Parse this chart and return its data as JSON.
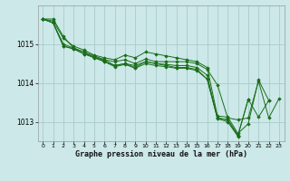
{
  "background_color": "#cce8e8",
  "plot_bg_color": "#cce8e8",
  "grid_color": "#aacccc",
  "line_color": "#1a6e1a",
  "marker_color": "#1a6e1a",
  "xlabel": "Graphe pression niveau de la mer (hPa)",
  "xlim": [
    -0.5,
    23.5
  ],
  "ylim": [
    1012.5,
    1016.0
  ],
  "yticks": [
    1013,
    1014,
    1015
  ],
  "xticks": [
    0,
    1,
    2,
    3,
    4,
    5,
    6,
    7,
    8,
    9,
    10,
    11,
    12,
    13,
    14,
    15,
    16,
    17,
    18,
    19,
    20,
    21,
    22,
    23
  ],
  "series": [
    {
      "x": [
        0,
        1,
        2,
        3,
        4,
        5,
        6,
        7,
        8,
        9,
        10,
        11,
        12,
        13,
        14,
        15,
        16,
        17,
        18,
        19,
        20,
        21,
        22,
        23
      ],
      "y": [
        1015.65,
        1015.65,
        1015.2,
        1014.9,
        1014.8,
        1014.65,
        1014.6,
        1014.55,
        1014.6,
        1014.5,
        1014.62,
        1014.55,
        1014.55,
        1014.55,
        1014.55,
        1014.5,
        1014.35,
        1013.95,
        1013.1,
        1013.05,
        1013.1,
        1014.05,
        1013.1,
        1013.6
      ]
    },
    {
      "x": [
        0,
        1,
        2,
        3,
        4,
        5,
        6,
        7,
        8,
        9,
        10,
        11,
        12,
        13,
        14,
        15,
        16,
        17,
        18,
        19,
        20,
        21,
        22
      ],
      "y": [
        1015.65,
        1015.6,
        1015.15,
        1014.95,
        1014.85,
        1014.72,
        1014.65,
        1014.6,
        1014.72,
        1014.65,
        1014.8,
        1014.75,
        1014.7,
        1014.65,
        1014.6,
        1014.55,
        1014.4,
        1013.15,
        1013.12,
        1012.7,
        1012.95,
        1014.08,
        1013.55
      ]
    },
    {
      "x": [
        0,
        1,
        2,
        3,
        4,
        5,
        6,
        7,
        8,
        9,
        10,
        11,
        12,
        13,
        14,
        15,
        16,
        17,
        18,
        19,
        20,
        21,
        22
      ],
      "y": [
        1015.65,
        1015.55,
        1014.95,
        1014.88,
        1014.75,
        1014.68,
        1014.55,
        1014.45,
        1014.5,
        1014.45,
        1014.55,
        1014.5,
        1014.45,
        1014.4,
        1014.4,
        1014.35,
        1014.1,
        1013.1,
        1013.05,
        1012.65,
        1013.58,
        1013.12,
        1013.55
      ]
    },
    {
      "x": [
        0,
        1,
        2,
        3,
        4,
        5,
        6,
        7,
        8,
        9,
        10,
        11,
        12,
        13,
        14,
        15,
        16,
        17,
        18,
        19,
        20
      ],
      "y": [
        1015.65,
        1015.55,
        1015.0,
        1014.9,
        1014.8,
        1014.7,
        1014.6,
        1014.45,
        1014.5,
        1014.4,
        1014.55,
        1014.5,
        1014.48,
        1014.45,
        1014.45,
        1014.4,
        1014.2,
        1013.1,
        1013.05,
        1012.65,
        1013.58
      ]
    },
    {
      "x": [
        0,
        1,
        2,
        3,
        4,
        5,
        6,
        7,
        8,
        9,
        10,
        11,
        12,
        13,
        14,
        15,
        16,
        17,
        18,
        19
      ],
      "y": [
        1015.65,
        1015.55,
        1014.95,
        1014.88,
        1014.75,
        1014.65,
        1014.55,
        1014.42,
        1014.48,
        1014.38,
        1014.5,
        1014.45,
        1014.42,
        1014.38,
        1014.38,
        1014.32,
        1014.1,
        1013.08,
        1013.0,
        1012.62
      ]
    }
  ]
}
